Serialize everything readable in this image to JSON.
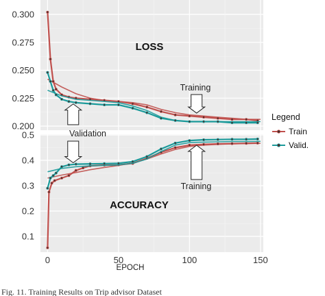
{
  "chart_data": {
    "type": "line",
    "x_axis": {
      "label": "EPOCH",
      "range": [
        -5,
        152
      ],
      "ticks": [
        0,
        50,
        100,
        150
      ]
    },
    "legend": {
      "title": "Legend",
      "position": "right",
      "entries": [
        {
          "label": "Train",
          "color": "#c0504d"
        },
        {
          "label": "Valid.",
          "color": "#1a9a9a"
        }
      ]
    },
    "panels": [
      {
        "title": "LOSS",
        "ylim": [
          0.195,
          0.302
        ],
        "y_ticks": [
          "0.200",
          "0.225",
          "0.250",
          "0.275",
          "0.300"
        ],
        "y_tick_values": [
          0.2,
          0.225,
          0.25,
          0.275,
          0.3
        ],
        "annotations": [
          {
            "text": "Training",
            "target_x": 105,
            "target_y": 0.211,
            "arrow": "down"
          }
        ],
        "series": [
          {
            "name": "Train",
            "role": "smooth",
            "x": [
              0,
              10,
              20,
              30,
              40,
              50,
              60,
              70,
              80,
              90,
              100,
              110,
              120,
              130,
              140,
              150
            ],
            "y": [
              0.242,
              0.235,
              0.229,
              0.225,
              0.223,
              0.222,
              0.221,
              0.219,
              0.215,
              0.212,
              0.21,
              0.209,
              0.208,
              0.207,
              0.206,
              0.206
            ]
          },
          {
            "name": "Train",
            "role": "epochs",
            "x": [
              0,
              2,
              4,
              6,
              10,
              15,
              20,
              30,
              40,
              50,
              60,
              70,
              80,
              90,
              100,
              110,
              120,
              130,
              140,
              148
            ],
            "y": [
              0.302,
              0.26,
              0.24,
              0.233,
              0.228,
              0.226,
              0.225,
              0.224,
              0.223,
              0.222,
              0.22,
              0.217,
              0.213,
              0.21,
              0.209,
              0.208,
              0.207,
              0.206,
              0.206,
              0.205
            ]
          },
          {
            "name": "Valid.",
            "role": "smooth",
            "x": [
              0,
              10,
              20,
              30,
              40,
              50,
              60,
              70,
              80,
              90,
              100,
              110,
              120,
              130,
              140,
              150
            ],
            "y": [
              0.232,
              0.227,
              0.224,
              0.223,
              0.222,
              0.221,
              0.218,
              0.214,
              0.208,
              0.205,
              0.204,
              0.204,
              0.204,
              0.204,
              0.204,
              0.204
            ]
          },
          {
            "name": "Valid.",
            "role": "epochs",
            "x": [
              0,
              2,
              4,
              6,
              10,
              15,
              20,
              30,
              40,
              50,
              60,
              70,
              80,
              90,
              100,
              110,
              120,
              130,
              140,
              148
            ],
            "y": [
              0.248,
              0.24,
              0.232,
              0.228,
              0.224,
              0.222,
              0.221,
              0.22,
              0.219,
              0.219,
              0.216,
              0.212,
              0.207,
              0.205,
              0.204,
              0.204,
              0.204,
              0.203,
              0.203,
              0.203
            ]
          }
        ]
      },
      {
        "title": "ACCURACY",
        "ylim": [
          0.04,
          0.505
        ],
        "y_ticks": [
          "0.1",
          "0.2",
          "0.3",
          "0.4",
          "0.5"
        ],
        "y_tick_values": [
          0.1,
          0.2,
          0.3,
          0.4,
          0.5
        ],
        "annotations": [
          {
            "text": "Training",
            "target_x": 105,
            "target_y": 0.465,
            "arrow": "up"
          }
        ],
        "series": [
          {
            "name": "Train",
            "role": "smooth",
            "x": [
              0,
              10,
              20,
              30,
              40,
              50,
              60,
              70,
              80,
              90,
              100,
              110,
              120,
              130,
              140,
              150
            ],
            "y": [
              0.33,
              0.342,
              0.352,
              0.363,
              0.372,
              0.38,
              0.39,
              0.405,
              0.425,
              0.443,
              0.455,
              0.46,
              0.463,
              0.465,
              0.466,
              0.467
            ]
          },
          {
            "name": "Train",
            "role": "epochs",
            "x": [
              0,
              1,
              3,
              5,
              10,
              15,
              20,
              25,
              30,
              40,
              50,
              60,
              70,
              80,
              90,
              100,
              110,
              120,
              130,
              140,
              148
            ],
            "y": [
              0.055,
              0.275,
              0.31,
              0.32,
              0.33,
              0.34,
              0.36,
              0.37,
              0.378,
              0.381,
              0.382,
              0.388,
              0.408,
              0.432,
              0.45,
              0.46,
              0.463,
              0.465,
              0.466,
              0.467,
              0.468
            ]
          },
          {
            "name": "Valid.",
            "role": "smooth",
            "x": [
              0,
              10,
              20,
              30,
              40,
              50,
              60,
              70,
              80,
              90,
              100,
              110,
              120,
              130,
              140,
              150
            ],
            "y": [
              0.355,
              0.368,
              0.375,
              0.378,
              0.38,
              0.382,
              0.388,
              0.405,
              0.435,
              0.46,
              0.47,
              0.472,
              0.473,
              0.474,
              0.474,
              0.475
            ]
          },
          {
            "name": "Valid.",
            "role": "epochs",
            "x": [
              0,
              2,
              4,
              6,
              10,
              15,
              20,
              30,
              40,
              50,
              60,
              70,
              80,
              90,
              100,
              110,
              120,
              130,
              140,
              148
            ],
            "y": [
              0.29,
              0.33,
              0.34,
              0.35,
              0.375,
              0.382,
              0.385,
              0.386,
              0.387,
              0.388,
              0.395,
              0.415,
              0.445,
              0.468,
              0.478,
              0.481,
              0.482,
              0.483,
              0.483,
              0.484
            ]
          }
        ]
      }
    ],
    "panel_annotations": [
      {
        "text": "Validation",
        "target_x": 20,
        "loss_y": 0.221,
        "acc_y": 0.385,
        "arrow": "both"
      }
    ]
  },
  "caption": "Fig. 11.  Training Results on Trip advisor Dataset"
}
